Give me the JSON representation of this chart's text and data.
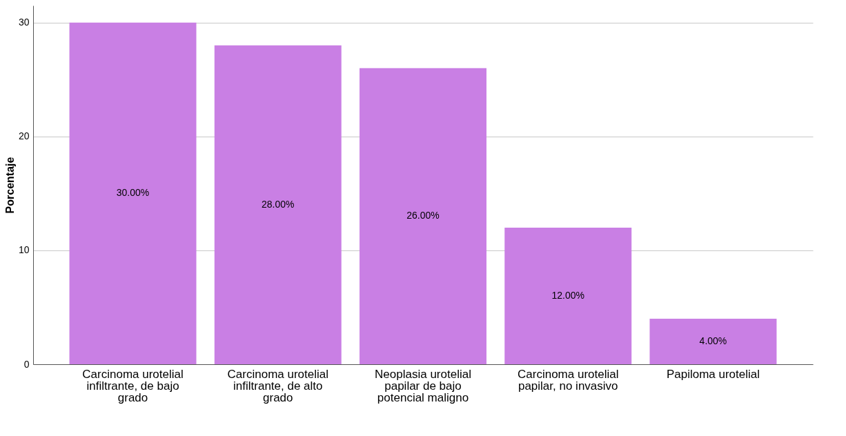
{
  "chart_data": {
    "type": "bar",
    "ylabel": "Porcentaje",
    "categories": [
      "Carcinoma urotelial infiltrante, de bajo grado",
      "Carcinoma urotelial infiltrante, de alto grado",
      "Neoplasia urotelial papilar de bajo potencial maligno",
      "Carcinoma urotelial papilar, no invasivo",
      "Papiloma urotelial"
    ],
    "values": [
      30,
      28,
      26,
      12,
      4
    ],
    "value_labels": [
      "30.00%",
      "28.00%",
      "26.00%",
      "12.00%",
      "4.00%"
    ],
    "color": "#c97fe4",
    "ylim": [
      0,
      31.5
    ],
    "yticks": [
      0,
      10,
      20,
      30
    ],
    "grid": "y"
  }
}
